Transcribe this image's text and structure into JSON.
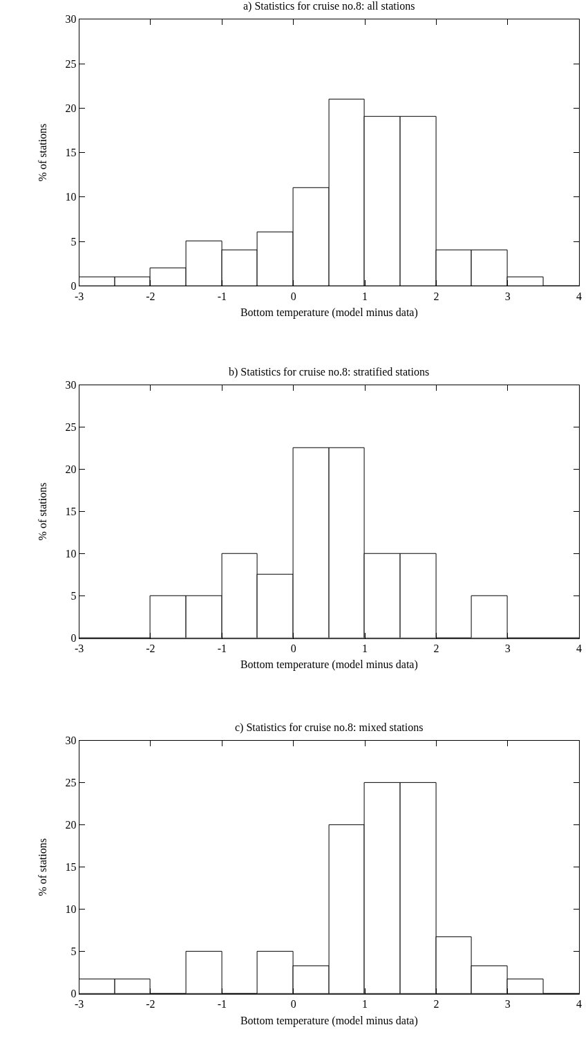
{
  "chart_data": [
    {
      "type": "histogram",
      "title": "a) Statistics for cruise no.8: all stations",
      "xlabel": "Bottom temperature (model minus data)",
      "ylabel": "% of stations",
      "bins": [
        -3,
        -2.5,
        -2,
        -1.5,
        -1,
        -0.5,
        0,
        0.5,
        1,
        1.5,
        2,
        2.5,
        3,
        3.5,
        4
      ],
      "values": [
        1,
        1,
        2,
        5,
        4,
        6,
        11,
        21,
        19,
        19,
        4,
        4,
        1,
        0
      ],
      "color": "#ffffff",
      "xlim": [
        -3,
        4
      ],
      "xticks": [
        -3,
        -2,
        -1,
        0,
        1,
        2,
        3,
        4
      ],
      "ylim": [
        0,
        30
      ],
      "yticks": [
        0,
        5,
        10,
        15,
        20,
        25,
        30
      ]
    },
    {
      "type": "histogram",
      "title": "b) Statistics for cruise no.8: stratified stations",
      "xlabel": "Bottom temperature (model minus data)",
      "ylabel": "% of stations",
      "bins": [
        -3,
        -2.5,
        -2,
        -1.5,
        -1,
        -0.5,
        0,
        0.5,
        1,
        1.5,
        2,
        2.5,
        3,
        3.5,
        4
      ],
      "values": [
        0,
        0,
        5,
        5,
        10,
        7.5,
        22.5,
        22.5,
        10,
        10,
        0,
        5,
        0,
        0
      ],
      "color": "#ffffff",
      "xlim": [
        -3,
        4
      ],
      "xticks": [
        -3,
        -2,
        -1,
        0,
        1,
        2,
        3,
        4
      ],
      "ylim": [
        0,
        30
      ],
      "yticks": [
        0,
        5,
        10,
        15,
        20,
        25,
        30
      ]
    },
    {
      "type": "histogram",
      "title": "c) Statistics for cruise no.8: mixed stations",
      "xlabel": "Bottom temperature (model minus data)",
      "ylabel": "% of stations",
      "bins": [
        -3,
        -2.5,
        -2,
        -1.5,
        -1,
        -0.5,
        0,
        0.5,
        1,
        1.5,
        2,
        2.5,
        3,
        3.5,
        4
      ],
      "values": [
        1.7,
        1.7,
        0,
        5,
        0,
        5,
        3.3,
        20,
        25,
        25,
        6.7,
        3.3,
        1.7,
        0
      ],
      "color": "#ffffff",
      "xlim": [
        -3,
        4
      ],
      "xticks": [
        -3,
        -2,
        -1,
        0,
        1,
        2,
        3,
        4
      ],
      "ylim": [
        0,
        30
      ],
      "yticks": [
        0,
        5,
        10,
        15,
        20,
        25,
        30
      ]
    }
  ]
}
